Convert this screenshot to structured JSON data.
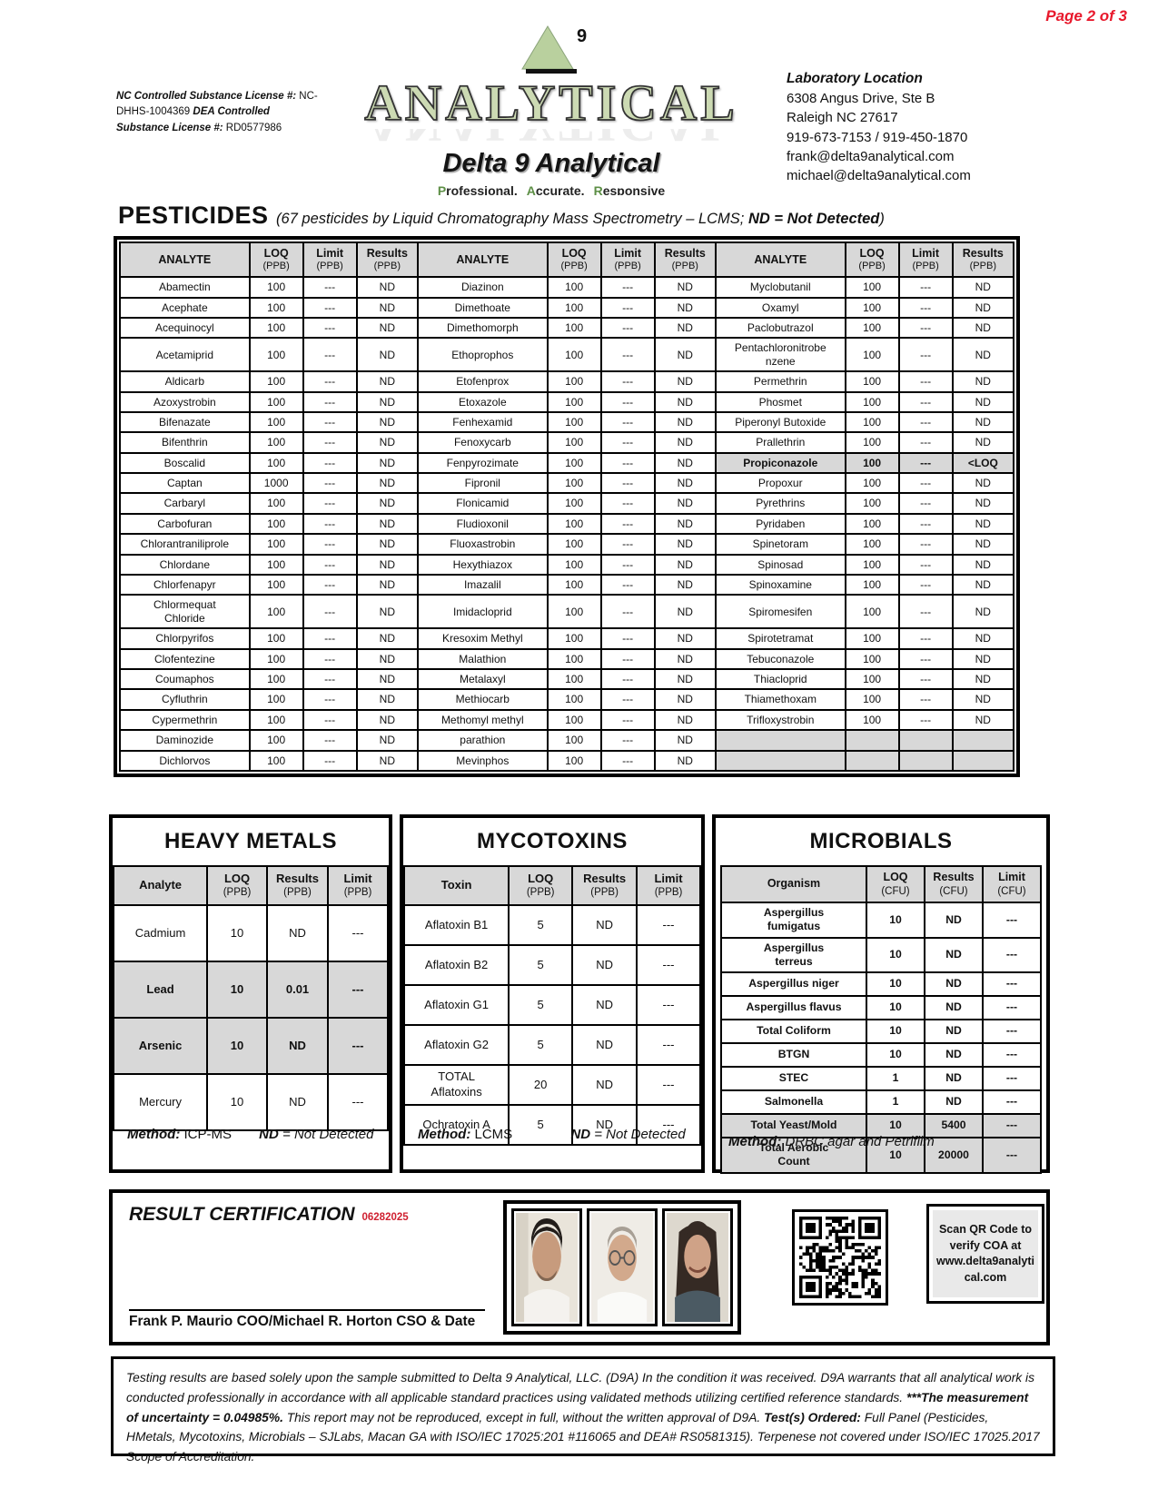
{
  "page_label": "Page 2 of 3",
  "colors": {
    "accent_red": "#e8192c",
    "header_gray": "#d8d8d8",
    "logo_green": "#b9d09e"
  },
  "header": {
    "license_seg1": "NC Controlled Substance License #:",
    "license_seg2": " NC-DHHS-1004369 ",
    "license_seg3": "DEA Controlled Substance License #: ",
    "license_seg4": "RD0577986",
    "logo": {
      "superscript": "9",
      "word": "ANALYTICAL",
      "name": "Delta 9 Analytical",
      "tag_words": [
        "Professional.",
        "Accurate.",
        "Responsive"
      ]
    },
    "lab": {
      "title": "Laboratory Location",
      "line1": "6308 Angus Drive, Ste B",
      "line2": "Raleigh NC 27617",
      "line3": "919-673-7153 / 919-450-1870",
      "line4": "frank@delta9analytical.com",
      "line5": "michael@delta9analytical.com"
    }
  },
  "pesticides": {
    "title": "PESTICIDES",
    "subtitle_pre": "(67 pesticides by Liquid Chromatography Mass Spectrometry – LCMS; ",
    "subtitle_bold": "ND = Not Detected",
    "subtitle_post": ")",
    "col_analyte": "ANALYTE",
    "col_loq": "LOQ",
    "col_limit": "Limit",
    "col_results": "Results",
    "unit": "(PPB)",
    "groups": [
      {
        "rows": [
          {
            "a": "Abamectin",
            "q": "100",
            "l": "---",
            "r": "ND"
          },
          {
            "a": "Acephate",
            "q": "100",
            "l": "---",
            "r": "ND"
          },
          {
            "a": "Acequinocyl",
            "q": "100",
            "l": "---",
            "r": "ND"
          },
          {
            "a": "Acetamiprid",
            "q": "100",
            "l": "---",
            "r": "ND"
          },
          {
            "a": "Aldicarb",
            "q": "100",
            "l": "---",
            "r": "ND"
          },
          {
            "a": "Azoxystrobin",
            "q": "100",
            "l": "---",
            "r": "ND"
          },
          {
            "a": "Bifenazate",
            "q": "100",
            "l": "---",
            "r": "ND"
          },
          {
            "a": "Bifenthrin",
            "q": "100",
            "l": "---",
            "r": "ND"
          },
          {
            "a": "Boscalid",
            "q": "100",
            "l": "---",
            "r": "ND"
          },
          {
            "a": "Captan",
            "q": "1000",
            "l": "---",
            "r": "ND"
          },
          {
            "a": "Carbaryl",
            "q": "100",
            "l": "---",
            "r": "ND"
          },
          {
            "a": "Carbofuran",
            "q": "100",
            "l": "---",
            "r": "ND"
          },
          {
            "a": "Chlorantraniliprole",
            "q": "100",
            "l": "---",
            "r": "ND"
          },
          {
            "a": "Chlordane",
            "q": "100",
            "l": "---",
            "r": "ND"
          },
          {
            "a": "Chlorfenapyr",
            "q": "100",
            "l": "---",
            "r": "ND"
          },
          {
            "a": "Chlormequat\nChloride",
            "q": "100",
            "l": "---",
            "r": "ND"
          },
          {
            "a": "Chlorpyrifos",
            "q": "100",
            "l": "---",
            "r": "ND"
          },
          {
            "a": "Clofentezine",
            "q": "100",
            "l": "---",
            "r": "ND"
          },
          {
            "a": "Coumaphos",
            "q": "100",
            "l": "---",
            "r": "ND"
          },
          {
            "a": "Cyfluthrin",
            "q": "100",
            "l": "---",
            "r": "ND"
          },
          {
            "a": "Cypermethrin",
            "q": "100",
            "l": "---",
            "r": "ND"
          },
          {
            "a": "Daminozide",
            "q": "100",
            "l": "---",
            "r": "ND"
          },
          {
            "a": "Dichlorvos",
            "q": "100",
            "l": "---",
            "r": "ND"
          }
        ]
      },
      {
        "rows": [
          {
            "a": "Diazinon",
            "q": "100",
            "l": "---",
            "r": "ND"
          },
          {
            "a": "Dimethoate",
            "q": "100",
            "l": "---",
            "r": "ND"
          },
          {
            "a": "Dimethomorph",
            "q": "100",
            "l": "---",
            "r": "ND"
          },
          {
            "a": "Ethoprophos",
            "q": "100",
            "l": "---",
            "r": "ND"
          },
          {
            "a": "Etofenprox",
            "q": "100",
            "l": "---",
            "r": "ND"
          },
          {
            "a": "Etoxazole",
            "q": "100",
            "l": "---",
            "r": "ND"
          },
          {
            "a": "Fenhexamid",
            "q": "100",
            "l": "---",
            "r": "ND"
          },
          {
            "a": "Fenoxycarb",
            "q": "100",
            "l": "---",
            "r": "ND"
          },
          {
            "a": "Fenpyrozimate",
            "q": "100",
            "l": "---",
            "r": "ND"
          },
          {
            "a": "Fipronil",
            "q": "100",
            "l": "---",
            "r": "ND"
          },
          {
            "a": "Flonicamid",
            "q": "100",
            "l": "---",
            "r": "ND"
          },
          {
            "a": "Fludioxonil",
            "q": "100",
            "l": "---",
            "r": "ND"
          },
          {
            "a": "Fluoxastrobin",
            "q": "100",
            "l": "---",
            "r": "ND"
          },
          {
            "a": "Hexythiazox",
            "q": "100",
            "l": "---",
            "r": "ND"
          },
          {
            "a": "Imazalil",
            "q": "100",
            "l": "---",
            "r": "ND"
          },
          {
            "a": "Imidacloprid",
            "q": "100",
            "l": "---",
            "r": "ND"
          },
          {
            "a": "Kresoxim Methyl",
            "q": "100",
            "l": "---",
            "r": "ND"
          },
          {
            "a": "Malathion",
            "q": "100",
            "l": "---",
            "r": "ND"
          },
          {
            "a": "Metalaxyl",
            "q": "100",
            "l": "---",
            "r": "ND"
          },
          {
            "a": "Methiocarb",
            "q": "100",
            "l": "---",
            "r": "ND"
          },
          {
            "a": "Methomyl methyl",
            "q": "100",
            "l": "---",
            "r": "ND"
          },
          {
            "a": "parathion",
            "q": "100",
            "l": "---",
            "r": "ND"
          },
          {
            "a": "Mevinphos",
            "q": "100",
            "l": "---",
            "r": "ND"
          }
        ]
      },
      {
        "rows": [
          {
            "a": "Myclobutanil",
            "q": "100",
            "l": "---",
            "r": "ND"
          },
          {
            "a": "Oxamyl",
            "q": "100",
            "l": "---",
            "r": "ND"
          },
          {
            "a": "Paclobutrazol",
            "q": "100",
            "l": "---",
            "r": "ND"
          },
          {
            "a": "Pentachloronitrobe\nnzene",
            "q": "100",
            "l": "---",
            "r": "ND"
          },
          {
            "a": "Permethrin",
            "q": "100",
            "l": "---",
            "r": "ND"
          },
          {
            "a": "Phosmet",
            "q": "100",
            "l": "---",
            "r": "ND"
          },
          {
            "a": "Piperonyl Butoxide",
            "q": "100",
            "l": "---",
            "r": "ND"
          },
          {
            "a": "Prallethrin",
            "q": "100",
            "l": "---",
            "r": "ND"
          },
          {
            "a": "Propiconazole",
            "q": "100",
            "l": "---",
            "r": "<LOQ",
            "hl": true
          },
          {
            "a": "Propoxur",
            "q": "100",
            "l": "---",
            "r": "ND"
          },
          {
            "a": "Pyrethrins",
            "q": "100",
            "l": "---",
            "r": "ND"
          },
          {
            "a": "Pyridaben",
            "q": "100",
            "l": "---",
            "r": "ND"
          },
          {
            "a": "Spinetoram",
            "q": "100",
            "l": "---",
            "r": "ND"
          },
          {
            "a": "Spinosad",
            "q": "100",
            "l": "---",
            "r": "ND"
          },
          {
            "a": "Spinoxamine",
            "q": "100",
            "l": "---",
            "r": "ND"
          },
          {
            "a": "Spiromesifen",
            "q": "100",
            "l": "---",
            "r": "ND"
          },
          {
            "a": "Spirotetramat",
            "q": "100",
            "l": "---",
            "r": "ND"
          },
          {
            "a": "Tebuconazole",
            "q": "100",
            "l": "---",
            "r": "ND"
          },
          {
            "a": "Thiacloprid",
            "q": "100",
            "l": "---",
            "r": "ND"
          },
          {
            "a": "Thiamethoxam",
            "q": "100",
            "l": "---",
            "r": "ND"
          },
          {
            "a": "Trifloxystrobin",
            "q": "100",
            "l": "---",
            "r": "ND"
          },
          null,
          null
        ]
      }
    ]
  },
  "heavy_metals": {
    "title": "HEAVY METALS",
    "name_header": "Analyte",
    "unit": "(PPB)",
    "col_loq": "LOQ",
    "col_results": "Results",
    "col_limit": "Limit",
    "rows": [
      {
        "n": "Cadmium",
        "q": "10",
        "r": "ND",
        "l": "---",
        "hl": false
      },
      {
        "n": "Lead",
        "q": "10",
        "r": "0.01",
        "l": "---",
        "hl": true
      },
      {
        "n": "Arsenic",
        "q": "10",
        "r": "ND",
        "l": "---",
        "hl": true
      },
      {
        "n": "Mercury",
        "q": "10",
        "r": "ND",
        "l": "---",
        "hl": false
      }
    ],
    "method_label": "Method:",
    "method_value": "ICP-MS",
    "nd_bold": "ND",
    "nd_rest": " = Not Detected"
  },
  "mycotoxins": {
    "title": "MYCOTOXINS",
    "name_header": "Toxin",
    "unit": "(PPB)",
    "col_loq": "LOQ",
    "col_results": "Results",
    "col_limit": "Limit",
    "rows": [
      {
        "n": "Aflatoxin B1",
        "q": "5",
        "r": "ND",
        "l": "---",
        "hl": false
      },
      {
        "n": "Aflatoxin B2",
        "q": "5",
        "r": "ND",
        "l": "---",
        "hl": false
      },
      {
        "n": "Aflatoxin G1",
        "q": "5",
        "r": "ND",
        "l": "---",
        "hl": false
      },
      {
        "n": "Aflatoxin G2",
        "q": "5",
        "r": "ND",
        "l": "---",
        "hl": false
      },
      {
        "n": "TOTAL\nAflatoxins",
        "q": "20",
        "r": "ND",
        "l": "---",
        "hl": false
      },
      {
        "n": "Ochratoxin A",
        "q": "5",
        "r": "ND",
        "l": "---",
        "hl": false
      }
    ],
    "method_label": "Method:",
    "method_value": "LCMS",
    "nd_bold": "ND",
    "nd_rest": " = Not Detected"
  },
  "microbials": {
    "title": "MICROBIALS",
    "name_header": "Organism",
    "unit": "(CFU)",
    "col_loq": "LOQ",
    "col_results": "Results",
    "col_limit": "Limit",
    "rows": [
      {
        "n": "Aspergillus\nfumigatus",
        "q": "10",
        "r": "ND",
        "l": "---",
        "hl": false
      },
      {
        "n": "Aspergillus\nterreus",
        "q": "10",
        "r": "ND",
        "l": "---",
        "hl": false
      },
      {
        "n": "Aspergillus niger",
        "q": "10",
        "r": "ND",
        "l": "---",
        "hl": false
      },
      {
        "n": "Aspergillus flavus",
        "q": "10",
        "r": "ND",
        "l": "---",
        "hl": false
      },
      {
        "n": "Total Coliform",
        "q": "10",
        "r": "ND",
        "l": "---",
        "hl": false
      },
      {
        "n": "BTGN",
        "q": "10",
        "r": "ND",
        "l": "---",
        "hl": false
      },
      {
        "n": "STEC",
        "q": "1",
        "r": "ND",
        "l": "---",
        "hl": false
      },
      {
        "n": "Salmonella",
        "q": "1",
        "r": "ND",
        "l": "---",
        "hl": false
      },
      {
        "n": "Total Yeast/Mold",
        "q": "10",
        "r": "5400",
        "l": "---",
        "hl": true
      },
      {
        "n": "Total Aerobic\nCount",
        "q": "10",
        "r": "20000",
        "l": "---",
        "hl": true
      }
    ],
    "method_label": "Method:",
    "method_value": "DRBC agar and Petrifilm"
  },
  "certification": {
    "title": "RESULT CERTIFICATION",
    "date": "06282025",
    "signature": "Frank P. Maurio COO/Michael R. Horton CSO & Date",
    "scan_note": "Scan QR Code to verify COA at www.delta9analytical.com"
  },
  "disclaimer": {
    "p1": "Testing results are based solely upon the sample submitted to Delta 9 Analytical, LLC. (D9A) In the condition it was received. D9A warrants that all analytical work is conducted professionally in accordance with all applicable standard practices using validated methods utilizing certified reference standards. ",
    "p2": "***The measurement of uncertainty = 0.04985%.",
    "p3": " This report may not be reproduced, except in full, without the written approval of D9A. ",
    "p4": "Test(s) Ordered:",
    "p5": " Full Panel (Pesticides, HMetals, Mycotoxins, Microbials – SJLabs, Macan GA with ISO/IEC 17025:201  #116065 and DEA# RS0581315). Terpenese not covered under ISO/IEC 17025.2017 Scope of Accreditation."
  }
}
